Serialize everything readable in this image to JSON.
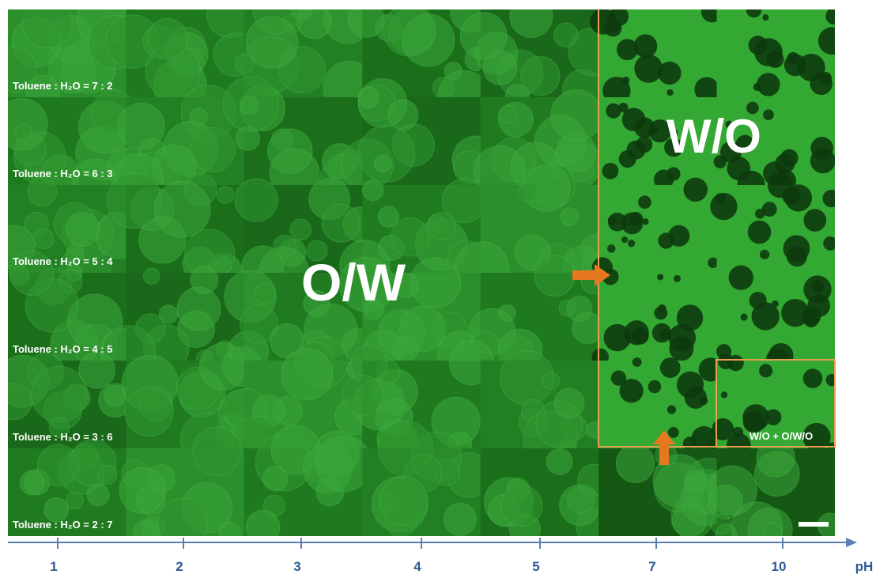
{
  "row_labels": [
    "Toluene : H₂O = 7 : 2",
    "Toluene : H₂O = 6 : 3",
    "Toluene : H₂O = 5 : 4",
    "Toluene : H₂O = 4 : 5",
    "Toluene : H₂O = 3 : 6",
    "Toluene : H₂O = 2 : 7"
  ],
  "x_axis": {
    "ticks": [
      "1",
      "2",
      "3",
      "4",
      "5",
      "7",
      "10"
    ],
    "label": "pH"
  },
  "regions": {
    "ow": "O/W",
    "wo": "W/O",
    "mixed": "W/O + O/W/O"
  }
}
